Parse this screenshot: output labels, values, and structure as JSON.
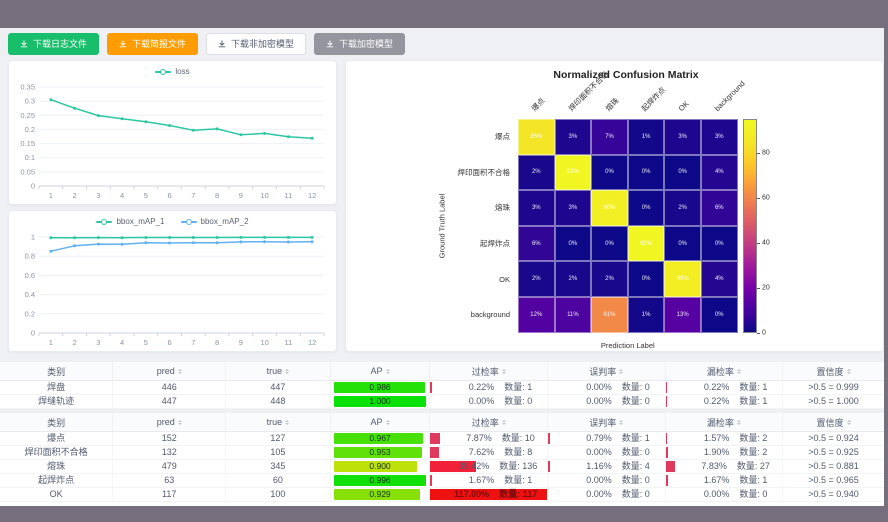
{
  "buttons": [
    {
      "label": "下载日志文件",
      "color": "#19be6b"
    },
    {
      "label": "下载简报文件",
      "color": "#ff9d00"
    },
    {
      "label": "下载非加密模型",
      "color": "#ffffff"
    },
    {
      "label": "下载加密模型",
      "color": "#95959f"
    }
  ],
  "chart_data": [
    {
      "type": "line",
      "x": [
        "1",
        "2",
        "3",
        "4",
        "5",
        "6",
        "7",
        "8",
        "9",
        "10",
        "11",
        "12"
      ],
      "yticks": [
        "0",
        "0.05",
        "0.1",
        "0.15",
        "0.2",
        "0.25",
        "0.3",
        "0.35"
      ],
      "ylim": [
        0,
        0.35
      ],
      "grid": true,
      "legend_position": "top",
      "series": [
        {
          "name": "loss",
          "color": "#2bc7a4",
          "values": [
            0.305,
            0.275,
            0.249,
            0.238,
            0.227,
            0.214,
            0.197,
            0.202,
            0.181,
            0.186,
            0.174,
            0.169
          ]
        }
      ]
    },
    {
      "type": "line",
      "x": [
        "1",
        "2",
        "3",
        "4",
        "5",
        "6",
        "7",
        "8",
        "9",
        "10",
        "11",
        "12"
      ],
      "yticks": [
        "0",
        "0.2",
        "0.4",
        "0.6",
        "0.8",
        "1"
      ],
      "ylim": [
        0,
        1
      ],
      "grid": true,
      "legend_position": "top",
      "series": [
        {
          "name": "bbox_mAP_1",
          "color": "#2bc7a4",
          "values": [
            0.993,
            0.992,
            0.994,
            0.993,
            0.995,
            0.995,
            0.995,
            0.995,
            0.996,
            0.996,
            0.996,
            0.996
          ]
        },
        {
          "name": "bbox_mAP_2",
          "color": "#5fb1f2",
          "values": [
            0.852,
            0.908,
            0.926,
            0.924,
            0.94,
            0.937,
            0.941,
            0.941,
            0.949,
            0.951,
            0.948,
            0.95
          ]
        }
      ]
    },
    {
      "type": "heatmap",
      "title": "Normalized Confusion Matrix",
      "xlabel": "Prediction Label",
      "ylabel": "Ground Truth Label",
      "labels": [
        "爆点",
        "焊印面积不合格",
        "熔珠",
        "起焊炸点",
        "OK",
        "background"
      ],
      "values": [
        [
          85,
          3,
          7,
          1,
          3,
          3
        ],
        [
          2,
          93,
          0,
          0,
          0,
          4
        ],
        [
          3,
          3,
          90,
          0,
          2,
          6
        ],
        [
          6,
          0,
          0,
          93,
          0,
          0
        ],
        [
          2,
          2,
          2,
          0,
          89,
          4
        ],
        [
          12,
          11,
          61,
          1,
          13,
          0
        ]
      ],
      "unit": "%",
      "vmax": 95,
      "colorbar_ticks": [
        0,
        20,
        40,
        60,
        80
      ],
      "legend_position": "right"
    }
  ],
  "tables": {
    "count_label": "数量:",
    "columns": [
      {
        "key": "label",
        "label": "类别",
        "sortable": false
      },
      {
        "key": "pred",
        "label": "pred",
        "sortable": true
      },
      {
        "key": "true",
        "label": "true",
        "sortable": true
      },
      {
        "key": "ap",
        "label": "AP",
        "sortable": true
      },
      {
        "key": "over",
        "label": "过检率",
        "sortable": true
      },
      {
        "key": "mis",
        "label": "误判率",
        "sortable": true
      },
      {
        "key": "miss",
        "label": "漏检率",
        "sortable": true
      },
      {
        "key": "conf",
        "label": "置信度",
        "sortable": true
      }
    ],
    "table1": {
      "rows": [
        {
          "label": "焊盘",
          "pred": 446,
          "true": 447,
          "ap": "0.986",
          "over": {
            "pct": "0.22%",
            "count": 1
          },
          "mis": {
            "pct": "0.00%",
            "count": 0
          },
          "miss": {
            "pct": "0.22%",
            "count": 1
          },
          "conf": ">0.5 = 0.999"
        },
        {
          "label": "焊缝轨迹",
          "pred": 447,
          "true": 448,
          "ap": "1.000",
          "over": {
            "pct": "0.00%",
            "count": 0
          },
          "mis": {
            "pct": "0.00%",
            "count": 0
          },
          "miss": {
            "pct": "0.22%",
            "count": 1
          },
          "conf": ">0.5 = 1.000"
        }
      ]
    },
    "table2": {
      "rows": [
        {
          "label": "爆点",
          "pred": 152,
          "true": 127,
          "ap": "0.967",
          "over": {
            "pct": "7.87%",
            "count": 10
          },
          "mis": {
            "pct": "0.79%",
            "count": 1
          },
          "miss": {
            "pct": "1.57%",
            "count": 2
          },
          "conf": ">0.5 = 0.924"
        },
        {
          "label": "焊印面积不合格",
          "pred": 132,
          "true": 105,
          "ap": "0.953",
          "over": {
            "pct": "7.62%",
            "count": 8
          },
          "mis": {
            "pct": "0.00%",
            "count": 0
          },
          "miss": {
            "pct": "1.90%",
            "count": 2
          },
          "conf": ">0.5 = 0.925"
        },
        {
          "label": "熔珠",
          "pred": 479,
          "true": 345,
          "ap": "0.900",
          "over": {
            "pct": "39.42%",
            "count": 136
          },
          "mis": {
            "pct": "1.16%",
            "count": 4
          },
          "miss": {
            "pct": "7.83%",
            "count": 27
          },
          "conf": ">0.5 = 0.881"
        },
        {
          "label": "起焊炸点",
          "pred": 63,
          "true": 60,
          "ap": "0.996",
          "over": {
            "pct": "1.67%",
            "count": 1
          },
          "mis": {
            "pct": "0.00%",
            "count": 0
          },
          "miss": {
            "pct": "1.67%",
            "count": 1
          },
          "conf": ">0.5 = 0.965"
        },
        {
          "label": "OK",
          "pred": 117,
          "true": 100,
          "ap": "0.929",
          "over": {
            "pct": "117.00%",
            "count": 117
          },
          "mis": {
            "pct": "0.00%",
            "count": 0
          },
          "miss": {
            "pct": "0.00%",
            "count": 0
          },
          "conf": ">0.5 = 0.940"
        }
      ]
    }
  }
}
